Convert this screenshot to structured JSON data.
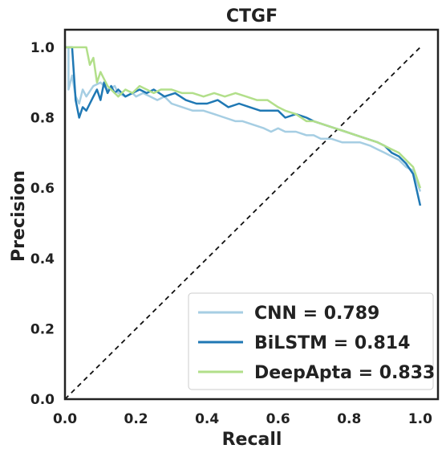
{
  "chart_data": {
    "type": "line",
    "title": "CTGF",
    "xlabel": "Recall",
    "ylabel": "Precision",
    "xlim": [
      0.0,
      1.05
    ],
    "ylim": [
      0.0,
      1.05
    ],
    "x_ticks": [
      "0.0",
      "0.2",
      "0.4",
      "0.6",
      "0.8",
      "1.0"
    ],
    "y_ticks": [
      "0.0",
      "0.2",
      "0.4",
      "0.6",
      "0.8",
      "1.0"
    ],
    "grid": false,
    "legend_position": "lower-right",
    "reference_line": {
      "from": [
        0,
        0
      ],
      "to": [
        1,
        1
      ],
      "style": "dashed",
      "color": "#111111"
    },
    "series": [
      {
        "name": "CNN = 0.789",
        "color": "#a6cee3",
        "x": [
          0.0,
          0.01,
          0.01,
          0.02,
          0.03,
          0.04,
          0.05,
          0.06,
          0.08,
          0.1,
          0.12,
          0.14,
          0.15,
          0.17,
          0.19,
          0.2,
          0.22,
          0.24,
          0.26,
          0.28,
          0.3,
          0.33,
          0.36,
          0.39,
          0.42,
          0.45,
          0.48,
          0.5,
          0.53,
          0.56,
          0.58,
          0.6,
          0.62,
          0.65,
          0.68,
          0.7,
          0.72,
          0.75,
          0.78,
          0.8,
          0.83,
          0.86,
          0.88,
          0.9,
          0.92,
          0.94,
          0.96,
          0.98,
          1.0
        ],
        "y": [
          1.0,
          1.0,
          0.88,
          0.92,
          0.86,
          0.84,
          0.88,
          0.86,
          0.89,
          0.9,
          0.88,
          0.89,
          0.87,
          0.86,
          0.87,
          0.86,
          0.87,
          0.86,
          0.85,
          0.86,
          0.84,
          0.83,
          0.82,
          0.82,
          0.81,
          0.8,
          0.79,
          0.79,
          0.78,
          0.77,
          0.76,
          0.77,
          0.76,
          0.76,
          0.75,
          0.75,
          0.74,
          0.74,
          0.73,
          0.73,
          0.73,
          0.72,
          0.71,
          0.7,
          0.69,
          0.68,
          0.66,
          0.65,
          0.59
        ]
      },
      {
        "name": "BiLSTM = 0.814",
        "color": "#1f78b4",
        "x": [
          0.0,
          0.02,
          0.03,
          0.04,
          0.05,
          0.06,
          0.07,
          0.08,
          0.09,
          0.1,
          0.11,
          0.12,
          0.13,
          0.14,
          0.15,
          0.17,
          0.19,
          0.21,
          0.23,
          0.25,
          0.28,
          0.31,
          0.34,
          0.37,
          0.4,
          0.43,
          0.46,
          0.49,
          0.52,
          0.55,
          0.58,
          0.6,
          0.62,
          0.65,
          0.68,
          0.7,
          0.73,
          0.76,
          0.79,
          0.82,
          0.85,
          0.88,
          0.9,
          0.92,
          0.94,
          0.96,
          0.98,
          1.0
        ],
        "y": [
          1.0,
          1.0,
          0.85,
          0.8,
          0.83,
          0.82,
          0.84,
          0.86,
          0.88,
          0.85,
          0.9,
          0.87,
          0.89,
          0.87,
          0.88,
          0.86,
          0.87,
          0.88,
          0.87,
          0.88,
          0.86,
          0.87,
          0.85,
          0.84,
          0.84,
          0.85,
          0.83,
          0.84,
          0.83,
          0.82,
          0.82,
          0.82,
          0.8,
          0.81,
          0.8,
          0.79,
          0.78,
          0.77,
          0.76,
          0.75,
          0.74,
          0.73,
          0.72,
          0.7,
          0.69,
          0.67,
          0.64,
          0.55
        ]
      },
      {
        "name": "DeepApta = 0.833",
        "color": "#b2df8a",
        "x": [
          0.0,
          0.03,
          0.06,
          0.07,
          0.08,
          0.09,
          0.1,
          0.12,
          0.14,
          0.15,
          0.17,
          0.19,
          0.21,
          0.23,
          0.25,
          0.27,
          0.3,
          0.33,
          0.36,
          0.39,
          0.42,
          0.45,
          0.48,
          0.51,
          0.54,
          0.57,
          0.6,
          0.62,
          0.65,
          0.68,
          0.7,
          0.73,
          0.76,
          0.79,
          0.82,
          0.85,
          0.88,
          0.9,
          0.92,
          0.94,
          0.96,
          0.98,
          1.0
        ],
        "y": [
          1.0,
          1.0,
          1.0,
          0.95,
          0.97,
          0.9,
          0.93,
          0.89,
          0.87,
          0.86,
          0.88,
          0.87,
          0.89,
          0.88,
          0.87,
          0.88,
          0.88,
          0.87,
          0.87,
          0.86,
          0.87,
          0.86,
          0.87,
          0.86,
          0.85,
          0.85,
          0.83,
          0.82,
          0.81,
          0.79,
          0.79,
          0.78,
          0.77,
          0.76,
          0.75,
          0.74,
          0.73,
          0.72,
          0.71,
          0.7,
          0.68,
          0.66,
          0.6
        ]
      }
    ]
  }
}
